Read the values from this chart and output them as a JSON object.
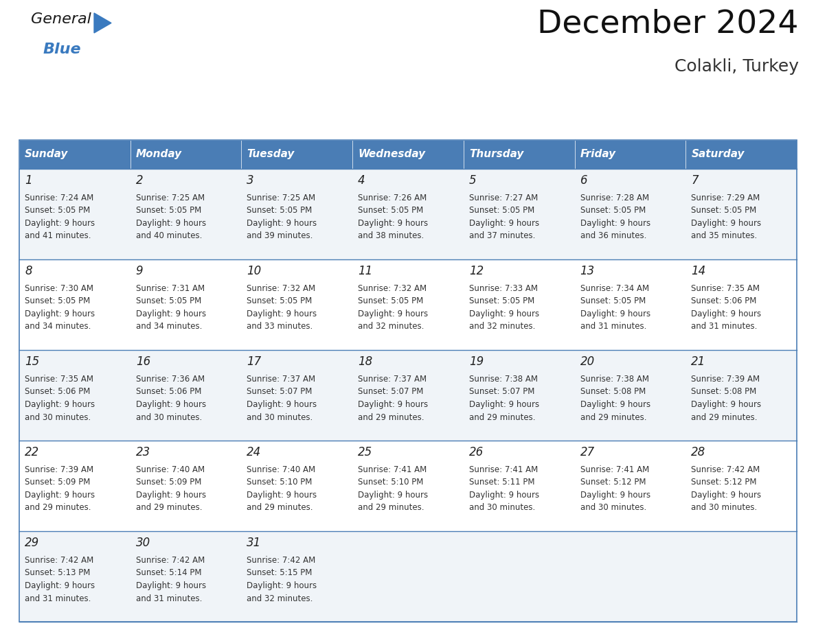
{
  "title": "December 2024",
  "subtitle": "Colakli, Turkey",
  "days_header": [
    "Sunday",
    "Monday",
    "Tuesday",
    "Wednesday",
    "Thursday",
    "Friday",
    "Saturday"
  ],
  "header_bg": "#4A7DB5",
  "header_text_color": "#ffffff",
  "cell_bg_odd": "#f0f4f8",
  "cell_bg_even": "#ffffff",
  "day_num_color": "#222222",
  "cell_text_color": "#333333",
  "title_color": "#111111",
  "subtitle_color": "#333333",
  "grid_color": "#4A7DB5",
  "logo_general_color": "#1a1a1a",
  "logo_blue_color": "#3a7abf",
  "calendar": [
    [
      {
        "day": 1,
        "sunrise": "7:24 AM",
        "sunset": "5:05 PM",
        "daylight_hours": 9,
        "daylight_minutes": 41
      },
      {
        "day": 2,
        "sunrise": "7:25 AM",
        "sunset": "5:05 PM",
        "daylight_hours": 9,
        "daylight_minutes": 40
      },
      {
        "day": 3,
        "sunrise": "7:25 AM",
        "sunset": "5:05 PM",
        "daylight_hours": 9,
        "daylight_minutes": 39
      },
      {
        "day": 4,
        "sunrise": "7:26 AM",
        "sunset": "5:05 PM",
        "daylight_hours": 9,
        "daylight_minutes": 38
      },
      {
        "day": 5,
        "sunrise": "7:27 AM",
        "sunset": "5:05 PM",
        "daylight_hours": 9,
        "daylight_minutes": 37
      },
      {
        "day": 6,
        "sunrise": "7:28 AM",
        "sunset": "5:05 PM",
        "daylight_hours": 9,
        "daylight_minutes": 36
      },
      {
        "day": 7,
        "sunrise": "7:29 AM",
        "sunset": "5:05 PM",
        "daylight_hours": 9,
        "daylight_minutes": 35
      }
    ],
    [
      {
        "day": 8,
        "sunrise": "7:30 AM",
        "sunset": "5:05 PM",
        "daylight_hours": 9,
        "daylight_minutes": 34
      },
      {
        "day": 9,
        "sunrise": "7:31 AM",
        "sunset": "5:05 PM",
        "daylight_hours": 9,
        "daylight_minutes": 34
      },
      {
        "day": 10,
        "sunrise": "7:32 AM",
        "sunset": "5:05 PM",
        "daylight_hours": 9,
        "daylight_minutes": 33
      },
      {
        "day": 11,
        "sunrise": "7:32 AM",
        "sunset": "5:05 PM",
        "daylight_hours": 9,
        "daylight_minutes": 32
      },
      {
        "day": 12,
        "sunrise": "7:33 AM",
        "sunset": "5:05 PM",
        "daylight_hours": 9,
        "daylight_minutes": 32
      },
      {
        "day": 13,
        "sunrise": "7:34 AM",
        "sunset": "5:05 PM",
        "daylight_hours": 9,
        "daylight_minutes": 31
      },
      {
        "day": 14,
        "sunrise": "7:35 AM",
        "sunset": "5:06 PM",
        "daylight_hours": 9,
        "daylight_minutes": 31
      }
    ],
    [
      {
        "day": 15,
        "sunrise": "7:35 AM",
        "sunset": "5:06 PM",
        "daylight_hours": 9,
        "daylight_minutes": 30
      },
      {
        "day": 16,
        "sunrise": "7:36 AM",
        "sunset": "5:06 PM",
        "daylight_hours": 9,
        "daylight_minutes": 30
      },
      {
        "day": 17,
        "sunrise": "7:37 AM",
        "sunset": "5:07 PM",
        "daylight_hours": 9,
        "daylight_minutes": 30
      },
      {
        "day": 18,
        "sunrise": "7:37 AM",
        "sunset": "5:07 PM",
        "daylight_hours": 9,
        "daylight_minutes": 29
      },
      {
        "day": 19,
        "sunrise": "7:38 AM",
        "sunset": "5:07 PM",
        "daylight_hours": 9,
        "daylight_minutes": 29
      },
      {
        "day": 20,
        "sunrise": "7:38 AM",
        "sunset": "5:08 PM",
        "daylight_hours": 9,
        "daylight_minutes": 29
      },
      {
        "day": 21,
        "sunrise": "7:39 AM",
        "sunset": "5:08 PM",
        "daylight_hours": 9,
        "daylight_minutes": 29
      }
    ],
    [
      {
        "day": 22,
        "sunrise": "7:39 AM",
        "sunset": "5:09 PM",
        "daylight_hours": 9,
        "daylight_minutes": 29
      },
      {
        "day": 23,
        "sunrise": "7:40 AM",
        "sunset": "5:09 PM",
        "daylight_hours": 9,
        "daylight_minutes": 29
      },
      {
        "day": 24,
        "sunrise": "7:40 AM",
        "sunset": "5:10 PM",
        "daylight_hours": 9,
        "daylight_minutes": 29
      },
      {
        "day": 25,
        "sunrise": "7:41 AM",
        "sunset": "5:10 PM",
        "daylight_hours": 9,
        "daylight_minutes": 29
      },
      {
        "day": 26,
        "sunrise": "7:41 AM",
        "sunset": "5:11 PM",
        "daylight_hours": 9,
        "daylight_minutes": 30
      },
      {
        "day": 27,
        "sunrise": "7:41 AM",
        "sunset": "5:12 PM",
        "daylight_hours": 9,
        "daylight_minutes": 30
      },
      {
        "day": 28,
        "sunrise": "7:42 AM",
        "sunset": "5:12 PM",
        "daylight_hours": 9,
        "daylight_minutes": 30
      }
    ],
    [
      {
        "day": 29,
        "sunrise": "7:42 AM",
        "sunset": "5:13 PM",
        "daylight_hours": 9,
        "daylight_minutes": 31
      },
      {
        "day": 30,
        "sunrise": "7:42 AM",
        "sunset": "5:14 PM",
        "daylight_hours": 9,
        "daylight_minutes": 31
      },
      {
        "day": 31,
        "sunrise": "7:42 AM",
        "sunset": "5:15 PM",
        "daylight_hours": 9,
        "daylight_minutes": 32
      },
      null,
      null,
      null,
      null
    ]
  ],
  "fig_width": 11.88,
  "fig_height": 9.18,
  "dpi": 100
}
